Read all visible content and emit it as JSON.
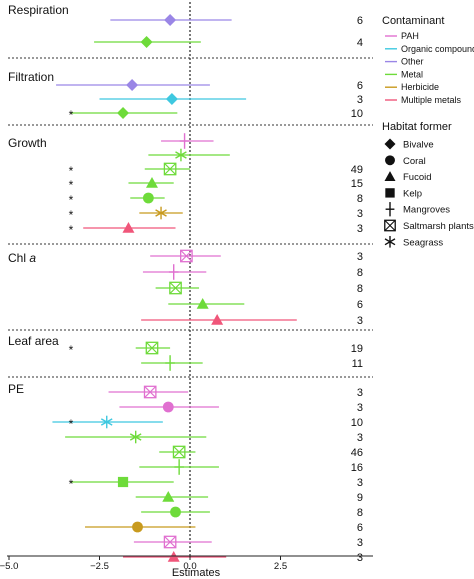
{
  "chart_data": {
    "type": "forest",
    "xlabel": "Estimates",
    "xlim": [
      -5.0,
      5.0
    ],
    "xticks": [
      -5.0,
      -2.5,
      0.0,
      2.5
    ],
    "xtick_labels": [
      "−5.0",
      "−2.5",
      "0.0",
      "2.5"
    ],
    "reference_line": 0.0,
    "grid": false,
    "legend_placement": "right",
    "legends": {
      "contaminant": {
        "title": "Contaminant",
        "items": [
          {
            "key": "PAH",
            "label": "PAH",
            "color": "#e070d0"
          },
          {
            "key": "OC",
            "label": "Organic compounds",
            "color": "#3ec8e0"
          },
          {
            "key": "Other",
            "label": "Other",
            "color": "#9a86e6"
          },
          {
            "key": "Metal",
            "label": "Metal",
            "color": "#6edb3a"
          },
          {
            "key": "Herb",
            "label": "Herbicide",
            "color": "#c89a1e"
          },
          {
            "key": "MM",
            "label": "Multiple metals",
            "color": "#f0567a"
          }
        ]
      },
      "habitat": {
        "title": "Habitat former",
        "items": [
          {
            "key": "bivalve",
            "label": "Bivalve",
            "shape": "diamond"
          },
          {
            "key": "coral",
            "label": "Coral",
            "shape": "circle"
          },
          {
            "key": "fucoid",
            "label": "Fucoid",
            "shape": "triangle"
          },
          {
            "key": "kelp",
            "label": "Kelp",
            "shape": "square"
          },
          {
            "key": "mangroves",
            "label": "Mangroves",
            "shape": "plus"
          },
          {
            "key": "saltmarsh",
            "label": "Saltmarsh plants",
            "shape": "xsquare"
          },
          {
            "key": "seagrass",
            "label": "Seagrass",
            "shape": "asterisk"
          }
        ]
      }
    },
    "panels": [
      {
        "title": "Respiration",
        "title_italic": "",
        "rows": [
          {
            "contaminant": "Other",
            "shape": "diamond",
            "estimate": -0.55,
            "lower": -2.2,
            "upper": 1.15,
            "n": "6",
            "sig": false
          },
          {
            "contaminant": "Metal",
            "shape": "diamond",
            "estimate": -1.2,
            "lower": -2.65,
            "upper": 0.3,
            "n": "4",
            "sig": false
          }
        ]
      },
      {
        "title": "Filtration",
        "title_italic": "",
        "rows": [
          {
            "contaminant": "Other",
            "shape": "diamond",
            "estimate": -1.6,
            "lower": -3.7,
            "upper": 0.55,
            "n": "6",
            "sig": false
          },
          {
            "contaminant": "OC",
            "shape": "diamond",
            "estimate": -0.5,
            "lower": -2.5,
            "upper": 1.55,
            "n": "3",
            "sig": false
          },
          {
            "contaminant": "Metal",
            "shape": "diamond",
            "estimate": -1.85,
            "lower": -3.3,
            "upper": -0.35,
            "n": "10",
            "sig": true
          }
        ]
      },
      {
        "title": "Growth",
        "title_italic": "",
        "rows": [
          {
            "contaminant": "PAH",
            "shape": "plus",
            "estimate": -0.15,
            "lower": -0.8,
            "upper": 0.65,
            "n": "",
            "sig": false
          },
          {
            "contaminant": "Metal",
            "shape": "asterisk",
            "estimate": -0.25,
            "lower": -1.15,
            "upper": 1.1,
            "n": "",
            "sig": false
          },
          {
            "contaminant": "Metal",
            "shape": "xsquare",
            "estimate": -0.55,
            "lower": -1.25,
            "upper": 0.0,
            "n": "49",
            "sig": true
          },
          {
            "contaminant": "Metal",
            "shape": "triangle",
            "estimate": -1.05,
            "lower": -1.7,
            "upper": -0.45,
            "n": "15",
            "sig": true
          },
          {
            "contaminant": "Metal",
            "shape": "circle",
            "estimate": -1.15,
            "lower": -1.65,
            "upper": -0.7,
            "n": "8",
            "sig": true
          },
          {
            "contaminant": "Herb",
            "shape": "asterisk",
            "estimate": -0.8,
            "lower": -1.4,
            "upper": -0.2,
            "n": "3",
            "sig": true
          },
          {
            "contaminant": "MM",
            "shape": "triangle",
            "estimate": -1.7,
            "lower": -2.95,
            "upper": -0.4,
            "n": "3",
            "sig": true
          }
        ]
      },
      {
        "title": "Chl ",
        "title_italic": "a",
        "rows": [
          {
            "contaminant": "PAH",
            "shape": "xsquare",
            "estimate": -0.1,
            "lower": -1.1,
            "upper": 0.85,
            "n": "3",
            "sig": false
          },
          {
            "contaminant": "PAH",
            "shape": "plus",
            "estimate": -0.45,
            "lower": -1.3,
            "upper": 0.45,
            "n": "8",
            "sig": false
          },
          {
            "contaminant": "Metal",
            "shape": "xsquare",
            "estimate": -0.4,
            "lower": -0.95,
            "upper": 0.25,
            "n": "8",
            "sig": false
          },
          {
            "contaminant": "Metal",
            "shape": "triangle",
            "estimate": 0.35,
            "lower": -0.6,
            "upper": 1.5,
            "n": "6",
            "sig": false
          },
          {
            "contaminant": "MM",
            "shape": "triangle",
            "estimate": 0.75,
            "lower": -1.35,
            "upper": 2.95,
            "n": "3",
            "sig": false
          }
        ]
      },
      {
        "title": "Leaf area",
        "title_italic": "",
        "rows": [
          {
            "contaminant": "Metal",
            "shape": "xsquare",
            "estimate": -1.05,
            "lower": -1.5,
            "upper": -0.55,
            "n": "19",
            "sig": true
          },
          {
            "contaminant": "Metal",
            "shape": "plus",
            "estimate": -0.55,
            "lower": -1.35,
            "upper": 0.35,
            "n": "11",
            "sig": false
          }
        ]
      },
      {
        "title": "PE",
        "title_italic": "",
        "rows": [
          {
            "contaminant": "PAH",
            "shape": "xsquare",
            "estimate": -1.1,
            "lower": -2.25,
            "upper": -0.05,
            "n": "3",
            "sig": false
          },
          {
            "contaminant": "PAH",
            "shape": "circle",
            "estimate": -0.6,
            "lower": -1.95,
            "upper": 0.8,
            "n": "3",
            "sig": false
          },
          {
            "contaminant": "OC",
            "shape": "asterisk",
            "estimate": -2.3,
            "lower": -3.8,
            "upper": -0.75,
            "n": "10",
            "sig": true
          },
          {
            "contaminant": "Metal",
            "shape": "asterisk",
            "estimate": -1.5,
            "lower": -3.45,
            "upper": 0.45,
            "n": "3",
            "sig": false
          },
          {
            "contaminant": "Metal",
            "shape": "xsquare",
            "estimate": -0.3,
            "lower": -0.85,
            "upper": 0.15,
            "n": "46",
            "sig": false
          },
          {
            "contaminant": "Metal",
            "shape": "plus",
            "estimate": -0.3,
            "lower": -1.4,
            "upper": 0.8,
            "n": "16",
            "sig": false
          },
          {
            "contaminant": "Metal",
            "shape": "square",
            "estimate": -1.85,
            "lower": -3.3,
            "upper": -0.45,
            "n": "3",
            "sig": true
          },
          {
            "contaminant": "Metal",
            "shape": "triangle",
            "estimate": -0.6,
            "lower": -1.5,
            "upper": 0.5,
            "n": "9",
            "sig": false
          },
          {
            "contaminant": "Metal",
            "shape": "circle",
            "estimate": -0.4,
            "lower": -1.35,
            "upper": 0.55,
            "n": "8",
            "sig": false
          },
          {
            "contaminant": "Herb",
            "shape": "circle",
            "estimate": -1.45,
            "lower": -2.9,
            "upper": 0.15,
            "n": "6",
            "sig": false
          },
          {
            "contaminant": "PAH",
            "shape": "xsquare",
            "estimate": -0.55,
            "lower": -1.55,
            "upper": 0.6,
            "n": "3",
            "sig": false
          },
          {
            "contaminant": "MM",
            "shape": "triangle",
            "estimate": -0.45,
            "lower": -1.85,
            "upper": 1.0,
            "n": "3",
            "sig": false
          }
        ]
      }
    ]
  }
}
